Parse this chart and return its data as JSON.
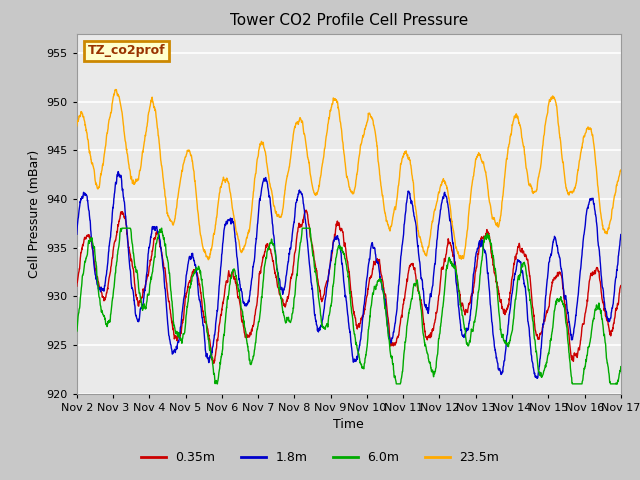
{
  "title": "Tower CO2 Profile Cell Pressure",
  "xlabel": "Time",
  "ylabel": "Cell Pressure (mBar)",
  "ylim": [
    920,
    957
  ],
  "yticks": [
    920,
    925,
    930,
    935,
    940,
    945,
    950,
    955
  ],
  "x_tick_labels": [
    "Nov 2",
    "Nov 3",
    "Nov 4",
    "Nov 5",
    "Nov 6",
    "Nov 7",
    "Nov 8",
    "Nov 9",
    "Nov 10",
    "Nov 11",
    "Nov 12",
    "Nov 13",
    "Nov 14",
    "Nov 15",
    "Nov 16",
    "Nov 17"
  ],
  "series_colors": [
    "#cc0000",
    "#0000cc",
    "#00aa00",
    "#ffaa00"
  ],
  "series_labels": [
    "0.35m",
    "1.8m",
    "6.0m",
    "23.5m"
  ],
  "annotation_text": "TZ_co2prof",
  "annotation_bbox_facecolor": "#ffffcc",
  "annotation_bbox_edgecolor": "#cc8800",
  "fig_facecolor": "#c8c8c8",
  "plot_bg_color": "#eaeaea",
  "grid_color": "#ffffff",
  "title_fontsize": 11,
  "axis_label_fontsize": 9,
  "tick_label_fontsize": 8,
  "legend_fontsize": 9,
  "line_width": 1.0,
  "n_points": 2160
}
